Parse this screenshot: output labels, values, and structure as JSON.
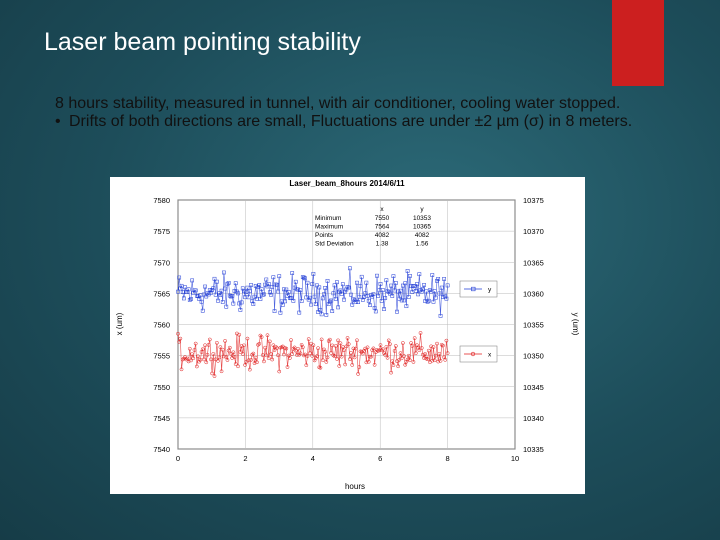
{
  "slide": {
    "title": "Laser beam pointing stability",
    "line1": "8 hours stability, measured in tunnel, with air conditioner, cooling water stopped.",
    "line2": "Drifts of both directions are small, Fluctuations are under ±2 µm (σ) in 8 meters.",
    "bullet_icon": "bullet-dot",
    "accent_color": "#cc1f1f"
  },
  "chart_data": {
    "type": "scatter",
    "title": "Laser_beam_8hours  2014/6/11",
    "xlabel": "hours",
    "ylabel_left": "x (um)",
    "ylabel_right": "y (um)",
    "xlim": [
      0,
      10
    ],
    "ylim_left": [
      7540,
      7580
    ],
    "ylim_right": [
      10335,
      10375
    ],
    "x_ticks": [
      "0",
      "2",
      "4",
      "6",
      "8",
      "10"
    ],
    "y_ticks_left": [
      "7580",
      "7575",
      "7570",
      "7565",
      "7560",
      "7555",
      "7550",
      "7545",
      "7540"
    ],
    "y_ticks_right": [
      "10375",
      "10370",
      "10365",
      "10360",
      "10355",
      "10350",
      "10345",
      "10340",
      "10335"
    ],
    "grid": true,
    "series": [
      {
        "name": "y",
        "axis": "right",
        "color": "#1f3bd6",
        "x_range": [
          0,
          8
        ],
        "mean": 10360,
        "spread": 4.5
      },
      {
        "name": "x",
        "axis": "left",
        "color": "#e01c1c",
        "x_range": [
          0,
          8
        ],
        "mean": 7555.5,
        "spread": 4.0
      }
    ],
    "stats_table": {
      "columns": [
        "",
        "x",
        "y"
      ],
      "rows": [
        [
          "Minimum",
          "7550",
          "10353"
        ],
        [
          "Maximum",
          "7564",
          "10365"
        ],
        [
          "Points",
          "4082",
          "4082"
        ],
        [
          "Std Deviation",
          "1.38",
          "1.56"
        ]
      ]
    },
    "legend": [
      {
        "label": "y",
        "color": "#1f3bd6",
        "position": "right-upper"
      },
      {
        "label": "x",
        "color": "#e01c1c",
        "position": "right-middle"
      }
    ]
  }
}
